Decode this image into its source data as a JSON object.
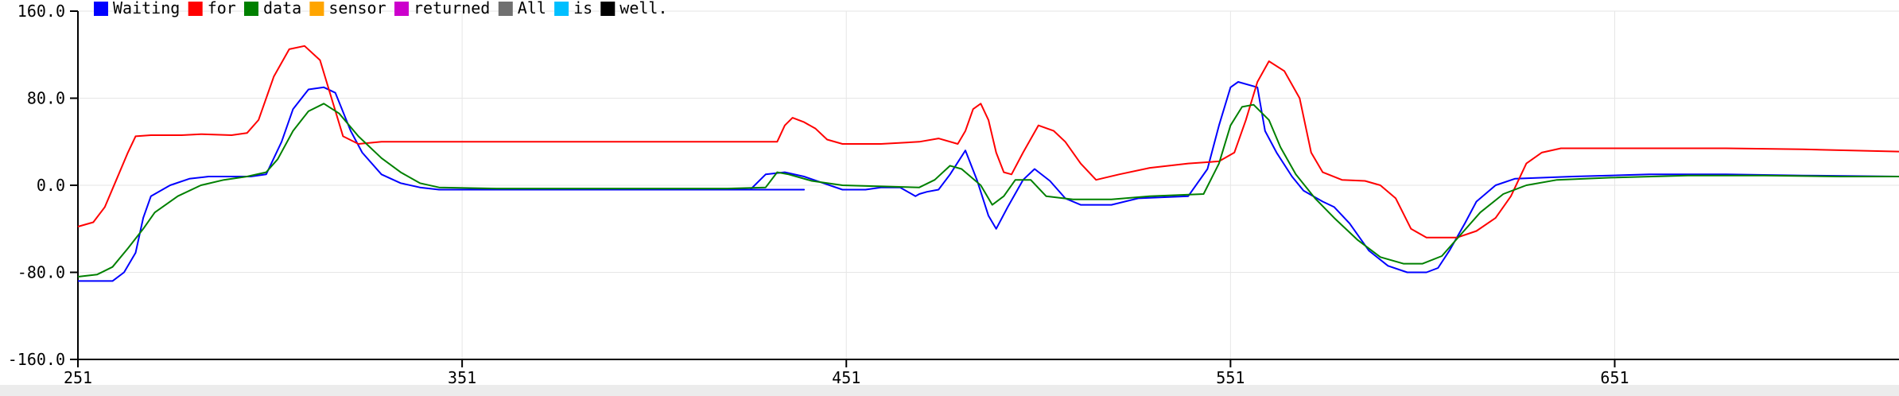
{
  "chart_data": {
    "type": "line",
    "title": "",
    "xlabel": "",
    "ylabel": "",
    "xlim": [
      251,
      725
    ],
    "ylim": [
      -160,
      160
    ],
    "grid": true,
    "legend_position": "top-left",
    "x_ticks": [
      251,
      351,
      451,
      551,
      651
    ],
    "x_tick_labels": [
      "251",
      "351",
      "451",
      "551",
      "651"
    ],
    "y_ticks": [
      160,
      80,
      0,
      -80,
      -160
    ],
    "y_tick_labels": [
      "160.0",
      "80.0",
      "0.0",
      "-80.0",
      "-160.0"
    ],
    "legend": [
      {
        "label": "Waiting",
        "color": "#0000ff"
      },
      {
        "label": "for",
        "color": "#ff0000"
      },
      {
        "label": "data",
        "color": "#008000"
      },
      {
        "label": "sensor",
        "color": "#ffa500"
      },
      {
        "label": "returned",
        "color": "#cc00cc"
      },
      {
        "label": "All",
        "color": "#707070"
      },
      {
        "label": "is",
        "color": "#00bfff"
      },
      {
        "label": "well.",
        "color": "#000000"
      }
    ],
    "series": [
      {
        "name": "Waiting",
        "color": "#0000ff",
        "points": [
          [
            251,
            -88
          ],
          [
            260,
            -88
          ],
          [
            263,
            -80
          ],
          [
            266,
            -62
          ],
          [
            268,
            -30
          ],
          [
            270,
            -10
          ],
          [
            275,
            0
          ],
          [
            280,
            6
          ],
          [
            285,
            8
          ],
          [
            292,
            8
          ],
          [
            296,
            8
          ],
          [
            300,
            10
          ],
          [
            304,
            40
          ],
          [
            307,
            70
          ],
          [
            311,
            88
          ],
          [
            315,
            90
          ],
          [
            318,
            85
          ],
          [
            322,
            50
          ],
          [
            325,
            30
          ],
          [
            330,
            10
          ],
          [
            335,
            2
          ],
          [
            340,
            -2
          ],
          [
            345,
            -4
          ],
          [
            360,
            -4
          ],
          [
            400,
            -4
          ],
          [
            420,
            -4
          ],
          [
            440,
            -4
          ],
          [
            426,
            -4
          ],
          [
            430,
            10
          ],
          [
            435,
            12
          ],
          [
            440,
            8
          ],
          [
            445,
            2
          ],
          [
            450,
            -4
          ],
          [
            456,
            -4
          ],
          [
            460,
            -2
          ],
          [
            465,
            -2
          ],
          [
            469,
            -10
          ],
          [
            470,
            -8
          ],
          [
            472,
            -6
          ],
          [
            475,
            -4
          ],
          [
            478,
            10
          ],
          [
            482,
            32
          ],
          [
            485,
            5
          ],
          [
            488,
            -28
          ],
          [
            490,
            -40
          ],
          [
            493,
            -20
          ],
          [
            497,
            5
          ],
          [
            500,
            15
          ],
          [
            504,
            4
          ],
          [
            508,
            -12
          ],
          [
            512,
            -18
          ],
          [
            520,
            -18
          ],
          [
            527,
            -12
          ],
          [
            540,
            -10
          ],
          [
            545,
            15
          ],
          [
            548,
            55
          ],
          [
            551,
            90
          ],
          [
            553,
            95
          ],
          [
            558,
            90
          ],
          [
            560,
            50
          ],
          [
            563,
            30
          ],
          [
            567,
            8
          ],
          [
            570,
            -5
          ],
          [
            575,
            -15
          ],
          [
            578,
            -20
          ],
          [
            582,
            -35
          ],
          [
            587,
            -60
          ],
          [
            592,
            -74
          ],
          [
            597,
            -80
          ],
          [
            602,
            -80
          ],
          [
            605,
            -76
          ],
          [
            608,
            -60
          ],
          [
            612,
            -35
          ],
          [
            615,
            -15
          ],
          [
            620,
            0
          ],
          [
            625,
            6
          ],
          [
            640,
            8
          ],
          [
            660,
            10
          ],
          [
            680,
            10
          ],
          [
            700,
            9
          ],
          [
            725,
            8
          ]
        ]
      },
      {
        "name": "for",
        "color": "#ff0000",
        "points": [
          [
            251,
            -38
          ],
          [
            255,
            -34
          ],
          [
            258,
            -20
          ],
          [
            261,
            5
          ],
          [
            264,
            30
          ],
          [
            266,
            45
          ],
          [
            270,
            46
          ],
          [
            278,
            46
          ],
          [
            283,
            47
          ],
          [
            291,
            46
          ],
          [
            295,
            48
          ],
          [
            298,
            60
          ],
          [
            302,
            100
          ],
          [
            306,
            125
          ],
          [
            310,
            128
          ],
          [
            314,
            115
          ],
          [
            317,
            80
          ],
          [
            320,
            45
          ],
          [
            324,
            38
          ],
          [
            330,
            40
          ],
          [
            340,
            40
          ],
          [
            360,
            40
          ],
          [
            400,
            40
          ],
          [
            420,
            40
          ],
          [
            433,
            40
          ],
          [
            435,
            55
          ],
          [
            437,
            62
          ],
          [
            440,
            58
          ],
          [
            443,
            52
          ],
          [
            446,
            42
          ],
          [
            450,
            38
          ],
          [
            460,
            38
          ],
          [
            470,
            40
          ],
          [
            475,
            43
          ],
          [
            480,
            38
          ],
          [
            482,
            50
          ],
          [
            484,
            70
          ],
          [
            486,
            75
          ],
          [
            488,
            60
          ],
          [
            490,
            30
          ],
          [
            492,
            12
          ],
          [
            494,
            10
          ],
          [
            497,
            30
          ],
          [
            501,
            55
          ],
          [
            505,
            50
          ],
          [
            508,
            40
          ],
          [
            512,
            20
          ],
          [
            516,
            5
          ],
          [
            522,
            10
          ],
          [
            530,
            16
          ],
          [
            540,
            20
          ],
          [
            548,
            22
          ],
          [
            552,
            30
          ],
          [
            555,
            60
          ],
          [
            558,
            95
          ],
          [
            561,
            114
          ],
          [
            565,
            105
          ],
          [
            569,
            80
          ],
          [
            572,
            30
          ],
          [
            575,
            12
          ],
          [
            580,
            5
          ],
          [
            586,
            4
          ],
          [
            590,
            0
          ],
          [
            594,
            -12
          ],
          [
            598,
            -40
          ],
          [
            602,
            -48
          ],
          [
            610,
            -48
          ],
          [
            615,
            -42
          ],
          [
            620,
            -30
          ],
          [
            624,
            -10
          ],
          [
            628,
            20
          ],
          [
            632,
            30
          ],
          [
            637,
            34
          ],
          [
            650,
            34
          ],
          [
            680,
            34
          ],
          [
            700,
            33
          ],
          [
            725,
            31
          ]
        ]
      },
      {
        "name": "data",
        "color": "#008000",
        "points": [
          [
            251,
            -84
          ],
          [
            256,
            -82
          ],
          [
            260,
            -75
          ],
          [
            264,
            -58
          ],
          [
            268,
            -40
          ],
          [
            271,
            -25
          ],
          [
            277,
            -10
          ],
          [
            283,
            0
          ],
          [
            289,
            5
          ],
          [
            295,
            8
          ],
          [
            300,
            12
          ],
          [
            303,
            24
          ],
          [
            307,
            50
          ],
          [
            311,
            68
          ],
          [
            315,
            75
          ],
          [
            319,
            66
          ],
          [
            324,
            45
          ],
          [
            330,
            25
          ],
          [
            335,
            12
          ],
          [
            340,
            2
          ],
          [
            345,
            -2
          ],
          [
            360,
            -3
          ],
          [
            400,
            -3
          ],
          [
            420,
            -3
          ],
          [
            430,
            -2
          ],
          [
            433,
            12
          ],
          [
            436,
            10
          ],
          [
            442,
            4
          ],
          [
            450,
            0
          ],
          [
            460,
            -1
          ],
          [
            470,
            -2
          ],
          [
            474,
            5
          ],
          [
            478,
            18
          ],
          [
            481,
            15
          ],
          [
            486,
            0
          ],
          [
            489,
            -18
          ],
          [
            492,
            -10
          ],
          [
            495,
            5
          ],
          [
            499,
            5
          ],
          [
            503,
            -10
          ],
          [
            510,
            -13
          ],
          [
            520,
            -13
          ],
          [
            530,
            -10
          ],
          [
            544,
            -8
          ],
          [
            548,
            20
          ],
          [
            551,
            55
          ],
          [
            554,
            72
          ],
          [
            557,
            74
          ],
          [
            561,
            60
          ],
          [
            564,
            35
          ],
          [
            568,
            10
          ],
          [
            573,
            -12
          ],
          [
            578,
            -30
          ],
          [
            584,
            -50
          ],
          [
            590,
            -66
          ],
          [
            596,
            -72
          ],
          [
            601,
            -72
          ],
          [
            606,
            -65
          ],
          [
            611,
            -45
          ],
          [
            616,
            -25
          ],
          [
            622,
            -8
          ],
          [
            628,
            0
          ],
          [
            636,
            5
          ],
          [
            650,
            7
          ],
          [
            670,
            9
          ],
          [
            690,
            9
          ],
          [
            710,
            8
          ],
          [
            725,
            8
          ]
        ]
      }
    ]
  }
}
